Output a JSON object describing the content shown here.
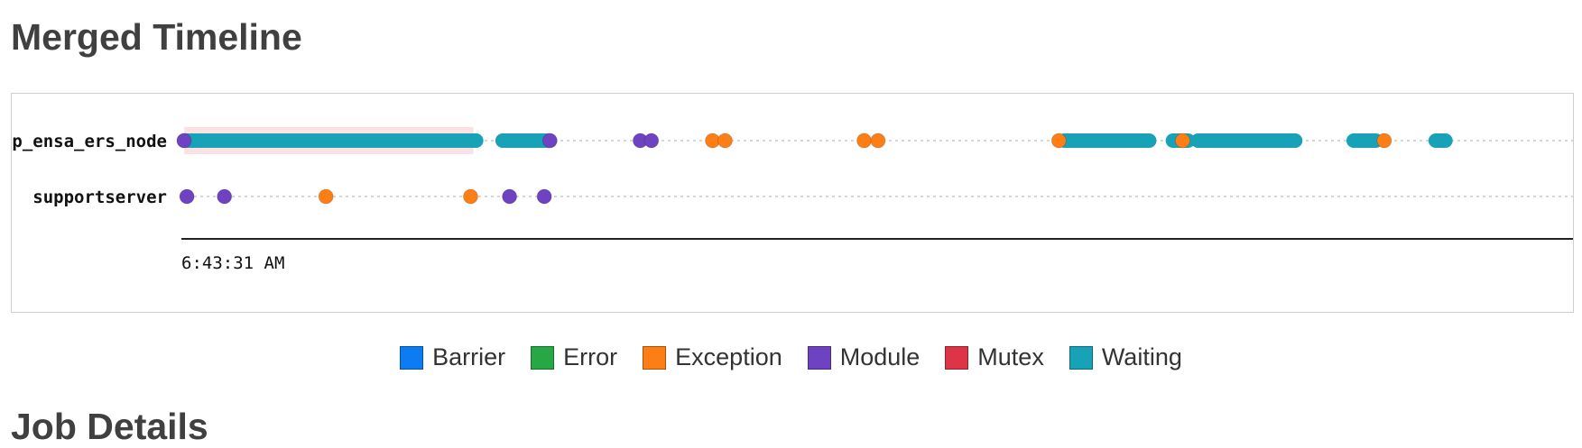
{
  "page": {
    "title": "Merged Timeline",
    "section_title": "Job Details"
  },
  "timeline": {
    "rows": [
      {
        "label": "ap_ensa_ers_node"
      },
      {
        "label": "supportserver"
      }
    ],
    "start_tick_label": "6:43:31 AM"
  },
  "legend": {
    "items": [
      {
        "label": "Barrier",
        "color": "#0d7cf2"
      },
      {
        "label": "Error",
        "color": "#28a745"
      },
      {
        "label": "Exception",
        "color": "#fd7e14"
      },
      {
        "label": "Module",
        "color": "#6f42c1"
      },
      {
        "label": "Mutex",
        "color": "#dc3545"
      },
      {
        "label": "Waiting",
        "color": "#17a2b8"
      }
    ]
  },
  "chart_data": {
    "type": "scatter",
    "series": [
      {
        "row": "ap_ensa_ers_node",
        "waiting_spans": [
          [
            0.0,
            21.0
          ],
          [
            22.9,
            26.3
          ],
          [
            63.3,
            69.4
          ],
          [
            71.1,
            72.2
          ],
          [
            72.9,
            79.9
          ],
          [
            84.1,
            85.7
          ],
          [
            90.0,
            90.7
          ]
        ],
        "points": [
          {
            "t": 0.0,
            "category": "Module"
          },
          {
            "t": 26.3,
            "category": "Module"
          },
          {
            "t": 32.8,
            "category": "Module"
          },
          {
            "t": 33.6,
            "category": "Module"
          },
          {
            "t": 38.0,
            "category": "Exception"
          },
          {
            "t": 38.9,
            "category": "Exception"
          },
          {
            "t": 48.9,
            "category": "Exception"
          },
          {
            "t": 49.9,
            "category": "Exception"
          },
          {
            "t": 62.9,
            "category": "Exception"
          },
          {
            "t": 71.8,
            "category": "Exception"
          },
          {
            "t": 86.3,
            "category": "Exception"
          }
        ],
        "highlight_span": [
          0.0,
          20.8
        ]
      },
      {
        "row": "supportserver",
        "waiting_spans": [],
        "points": [
          {
            "t": 0.2,
            "category": "Module"
          },
          {
            "t": 2.9,
            "category": "Module"
          },
          {
            "t": 10.2,
            "category": "Exception"
          },
          {
            "t": 20.6,
            "category": "Exception"
          },
          {
            "t": 23.4,
            "category": "Module"
          },
          {
            "t": 25.9,
            "category": "Module"
          }
        ],
        "highlight_span": null
      }
    ],
    "x_range": [
      0,
      100
    ],
    "grid": false,
    "legend_placement": "bottom"
  }
}
